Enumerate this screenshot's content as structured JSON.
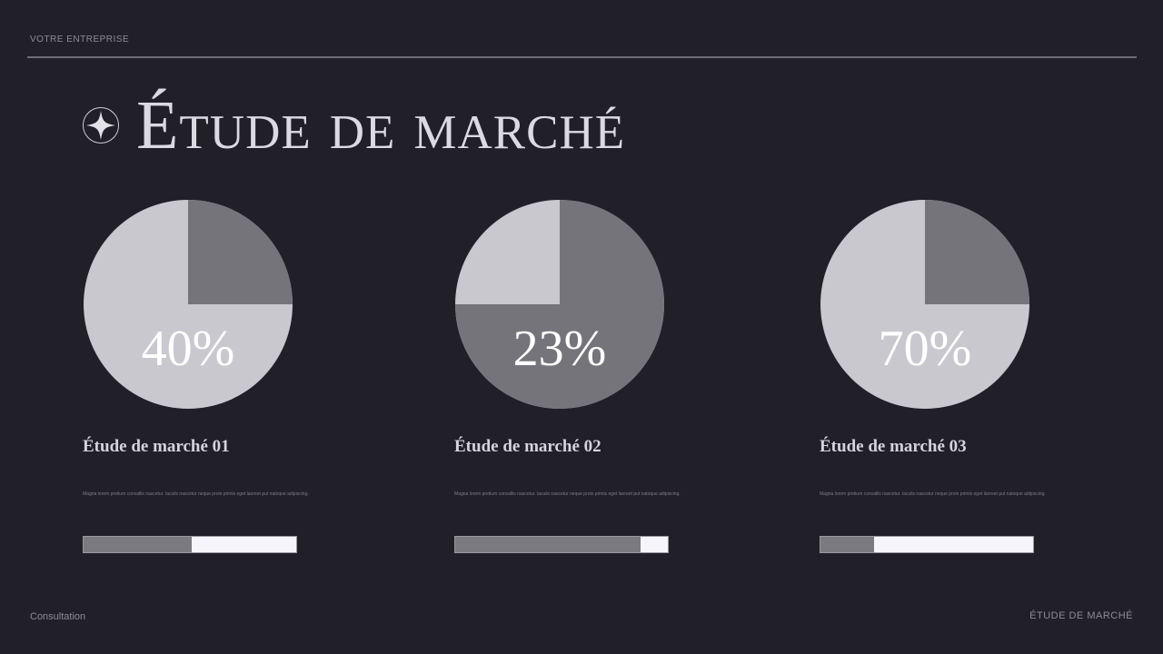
{
  "header": {
    "company": "VOTRE ENTREPRISE"
  },
  "title": {
    "text": "Étude de marché",
    "icon": "four-point-star-icon"
  },
  "colors": {
    "background": "#211f27",
    "pie_light": "#cac8cf",
    "pie_dark": "#75747a",
    "bar_fill": "#7b7a80",
    "bar_track": "#f6f5fb"
  },
  "cards": [
    {
      "value_label": "40%",
      "dark_slice": {
        "start_percent": 0,
        "size_percent": 25
      },
      "heading": "Étude de marché 01",
      "body": "Magna lorem pretium convallis nascetur. Iaculis nascetur neque proin primis eget laoreet put natoque adipiscing.",
      "progress_percent": 51
    },
    {
      "value_label": "23%",
      "dark_slice": {
        "start_percent": 0,
        "size_percent": 75
      },
      "heading": "Étude de marché 02",
      "body": "Magna lorem pretium convallis nascetur. Iaculis nascetur neque proin primis eget laoreet put natoque adipiscing.",
      "progress_percent": 87
    },
    {
      "value_label": "70%",
      "dark_slice": {
        "start_percent": 0,
        "size_percent": 25
      },
      "heading": "Étude de marché 03",
      "body": "Magna lorem pretium convallis nascetur. Iaculis nascetur neque proin primis eget laoreet put natoque adipiscing.",
      "progress_percent": 25
    }
  ],
  "footer": {
    "left": "Consultation",
    "right": "ÉTUDE DE MARCHÉ"
  }
}
